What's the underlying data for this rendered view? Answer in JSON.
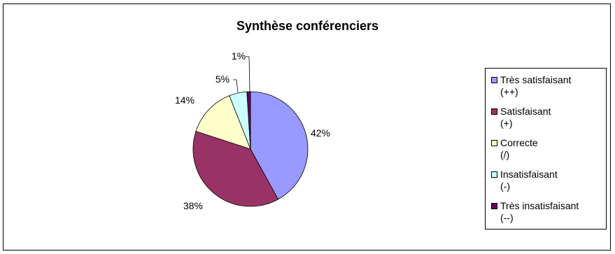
{
  "chart_data": {
    "type": "pie",
    "title": "Synthèse conférenciers",
    "categories": [
      "Très satisfaisant (++)",
      "Satisfaisant (+)",
      "Correcte (/)",
      "Insatisfaisant (-)",
      "Très insatisfaisant (--)"
    ],
    "legend_lines": [
      [
        "Très satisfaisant",
        "(++)"
      ],
      [
        "Satisfaisant",
        "(+)"
      ],
      [
        "Correcte",
        "(/)"
      ],
      [
        "Insatisfaisant",
        "(-)"
      ],
      [
        "Très insatisfaisant",
        "(--)"
      ]
    ],
    "values": [
      42,
      38,
      14,
      5,
      1
    ],
    "data_labels": [
      "42%",
      "38%",
      "14%",
      "5%",
      "1%"
    ],
    "colors": [
      "#9999ff",
      "#993366",
      "#ffffcc",
      "#ccffff",
      "#660066"
    ],
    "legend_position": "right"
  }
}
